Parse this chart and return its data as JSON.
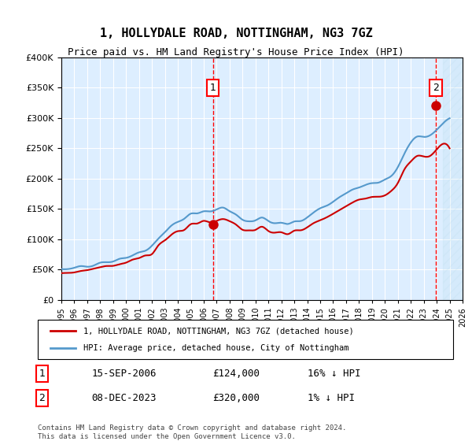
{
  "title": "1, HOLLYDALE ROAD, NOTTINGHAM, NG3 7GZ",
  "subtitle": "Price paid vs. HM Land Registry's House Price Index (HPI)",
  "legend_line1": "1, HOLLYDALE ROAD, NOTTINGHAM, NG3 7GZ (detached house)",
  "legend_line2": "HPI: Average price, detached house, City of Nottingham",
  "sale1_label": "1",
  "sale1_date": "15-SEP-2006",
  "sale1_price": "£124,000",
  "sale1_hpi": "16% ↓ HPI",
  "sale1_year": 2006.71,
  "sale1_value": 124000,
  "sale2_label": "2",
  "sale2_date": "08-DEC-2023",
  "sale2_price": "£320,000",
  "sale2_hpi": "1% ↓ HPI",
  "sale2_year": 2023.93,
  "sale2_value": 320000,
  "ylim": [
    0,
    400000
  ],
  "xlim": [
    1995,
    2026
  ],
  "line_color_red": "#cc0000",
  "line_color_blue": "#5599cc",
  "bg_color": "#ddeeff",
  "plot_bg": "#ddeeff",
  "footnote1": "Contains HM Land Registry data © Crown copyright and database right 2024.",
  "footnote2": "This data is licensed under the Open Government Licence v3.0."
}
